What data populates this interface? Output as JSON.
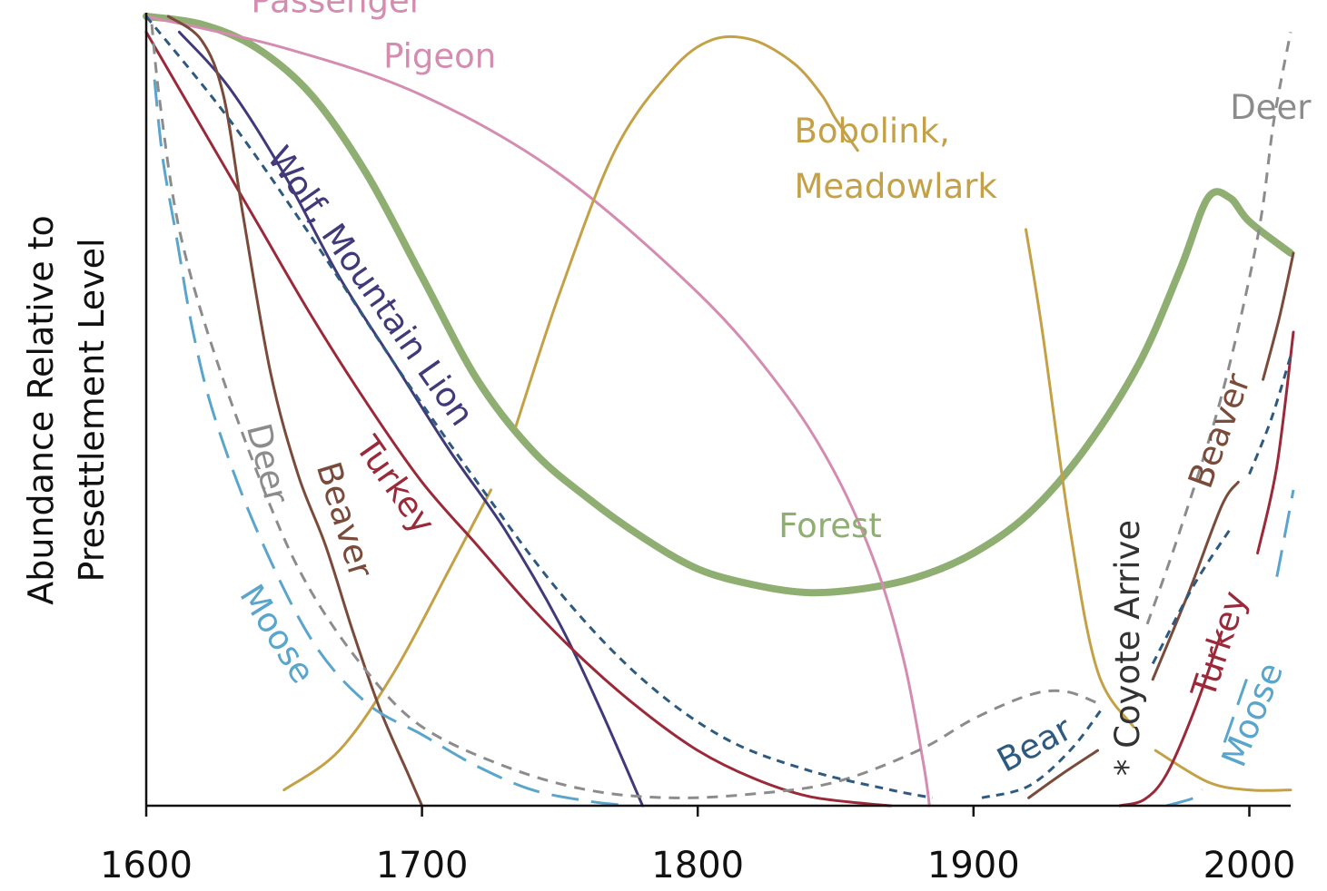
{
  "chart_data": {
    "type": "line",
    "title": "",
    "xlabel": "",
    "ylabel_lines": [
      "Abundance Relative to",
      "Presettlement Level"
    ],
    "xlim": [
      1600,
      2015
    ],
    "ylim": [
      0,
      1
    ],
    "x_ticks": [
      1600,
      1700,
      1800,
      1900,
      2000
    ],
    "x_tick_labels": [
      "1600",
      "1700",
      "1800",
      "1900",
      "2000"
    ],
    "grid": false,
    "legend": "none (direct labels)",
    "colors": {
      "forest": "#8fae72",
      "pigeon": "#d48cb0",
      "bobolink": "#c4a146",
      "wolf": "#413a7a",
      "turkey": "#9a2a3a",
      "beaver": "#7a4b3a",
      "deer": "#8c8c8c",
      "moose": "#5aa5cc",
      "bear": "#2f5a80",
      "coyote": "#333333"
    },
    "series": [
      {
        "key": "forest",
        "name": "Forest",
        "color": "#8fae72",
        "style": "solid",
        "width": 8,
        "segments": [
          [
            [
              1600,
              1.0
            ],
            [
              1620,
              0.99
            ],
            [
              1640,
              0.96
            ],
            [
              1660,
              0.9
            ],
            [
              1680,
              0.8
            ],
            [
              1700,
              0.67
            ],
            [
              1720,
              0.54
            ],
            [
              1740,
              0.45
            ],
            [
              1760,
              0.39
            ],
            [
              1780,
              0.34
            ],
            [
              1800,
              0.3
            ],
            [
              1820,
              0.28
            ],
            [
              1840,
              0.27
            ],
            [
              1860,
              0.275
            ],
            [
              1880,
              0.29
            ],
            [
              1900,
              0.32
            ],
            [
              1920,
              0.37
            ],
            [
              1940,
              0.45
            ],
            [
              1960,
              0.56
            ],
            [
              1975,
              0.68
            ],
            [
              1985,
              0.77
            ],
            [
              1993,
              0.77
            ],
            [
              2000,
              0.74
            ],
            [
              2015,
              0.7
            ]
          ]
        ]
      },
      {
        "key": "pigeon",
        "name": "Passenger Pigeon",
        "color": "#d48cb0",
        "style": "solid",
        "width": 3,
        "segments": [
          [
            [
              1600,
              1.0
            ],
            [
              1650,
              0.96
            ],
            [
              1700,
              0.9
            ],
            [
              1750,
              0.8
            ],
            [
              1800,
              0.65
            ],
            [
              1830,
              0.53
            ],
            [
              1850,
              0.42
            ],
            [
              1865,
              0.3
            ],
            [
              1875,
              0.18
            ],
            [
              1882,
              0.05
            ],
            [
              1884,
              0.0
            ]
          ]
        ]
      },
      {
        "key": "bobolink",
        "name": "Bobolink, Meadowlark",
        "color": "#c4a146",
        "style": "solid",
        "width": 3,
        "segments": [
          [
            [
              1650,
              0.02
            ],
            [
              1670,
              0.07
            ],
            [
              1690,
              0.17
            ],
            [
              1710,
              0.3
            ],
            [
              1725,
              0.4
            ]
          ],
          [
            [
              1734,
              0.48
            ],
            [
              1750,
              0.65
            ],
            [
              1770,
              0.83
            ],
            [
              1790,
              0.93
            ],
            [
              1805,
              0.97
            ],
            [
              1820,
              0.97
            ],
            [
              1835,
              0.94
            ],
            [
              1845,
              0.9
            ],
            [
              1850,
              0.87
            ],
            [
              1858,
              0.83
            ]
          ],
          [
            [
              1919,
              0.73
            ],
            [
              1925,
              0.6
            ],
            [
              1935,
              0.35
            ],
            [
              1945,
              0.17
            ],
            [
              1958,
              0.1
            ]
          ],
          [
            [
              1966,
              0.07
            ],
            [
              1985,
              0.03
            ],
            [
              2000,
              0.02
            ],
            [
              2015,
              0.02
            ]
          ]
        ]
      },
      {
        "key": "wolf",
        "name": "Wolf, Mountain Lion",
        "color": "#413a7a",
        "style": "solid",
        "width": 3,
        "segments": [
          [
            [
              1612,
              0.98
            ],
            [
              1630,
              0.91
            ],
            [
              1650,
              0.8
            ],
            [
              1670,
              0.67
            ],
            [
              1690,
              0.56
            ],
            [
              1710,
              0.45
            ],
            [
              1730,
              0.35
            ],
            [
              1750,
              0.23
            ],
            [
              1765,
              0.12
            ],
            [
              1780,
              0.0
            ]
          ]
        ]
      },
      {
        "key": "turkey",
        "name": "Turkey",
        "color": "#9a2a3a",
        "style": "solid",
        "width": 3,
        "segments": [
          [
            [
              1600,
              0.98
            ],
            [
              1620,
              0.86
            ],
            [
              1640,
              0.74
            ],
            [
              1660,
              0.62
            ],
            [
              1680,
              0.51
            ],
            [
              1700,
              0.41
            ],
            [
              1720,
              0.33
            ],
            [
              1740,
              0.25
            ],
            [
              1760,
              0.18
            ],
            [
              1780,
              0.12
            ],
            [
              1800,
              0.07
            ],
            [
              1820,
              0.035
            ],
            [
              1840,
              0.012
            ],
            [
              1860,
              0.003
            ],
            [
              1870,
              0.0
            ]
          ],
          [
            [
              1953,
              0.0
            ],
            [
              1962,
              0.008
            ],
            [
              1970,
              0.04
            ],
            [
              1980,
              0.12
            ],
            [
              1990,
              0.22
            ]
          ],
          [
            [
              2003,
              0.32
            ],
            [
              2010,
              0.43
            ],
            [
              2016,
              0.6
            ]
          ]
        ]
      },
      {
        "key": "beaver",
        "name": "Beaver",
        "color": "#7a4b3a",
        "style": "solid",
        "width": 3,
        "segments": [
          [
            [
              1608,
              1.0
            ],
            [
              1620,
              0.97
            ],
            [
              1628,
              0.9
            ],
            [
              1635,
              0.75
            ],
            [
              1645,
              0.55
            ],
            [
              1655,
              0.42
            ],
            [
              1665,
              0.33
            ],
            [
              1675,
              0.22
            ],
            [
              1685,
              0.12
            ],
            [
              1695,
              0.04
            ],
            [
              1700,
              0.0
            ]
          ],
          [
            [
              1920,
              0.01
            ],
            [
              1932,
              0.04
            ],
            [
              1945,
              0.07
            ]
          ],
          [
            [
              1965,
              0.16
            ],
            [
              1978,
              0.27
            ],
            [
              1990,
              0.38
            ],
            [
              1996,
              0.41
            ]
          ],
          [
            [
              2005,
              0.54
            ],
            [
              2011,
              0.62
            ],
            [
              2016,
              0.7
            ]
          ]
        ]
      },
      {
        "key": "deer",
        "name": "Deer",
        "color": "#8c8c8c",
        "style": "dash",
        "width": 3,
        "segments": [
          [
            [
              1602,
              0.99
            ],
            [
              1605,
              0.89
            ],
            [
              1612,
              0.73
            ],
            [
              1625,
              0.57
            ],
            [
              1645,
              0.38
            ],
            [
              1660,
              0.27
            ],
            [
              1680,
              0.17
            ],
            [
              1700,
              0.1
            ],
            [
              1730,
              0.05
            ],
            [
              1760,
              0.02
            ],
            [
              1790,
              0.01
            ],
            [
              1820,
              0.015
            ],
            [
              1850,
              0.03
            ],
            [
              1880,
              0.07
            ],
            [
              1900,
              0.11
            ],
            [
              1920,
              0.14
            ],
            [
              1933,
              0.145
            ],
            [
              1945,
              0.13
            ]
          ],
          [
            [
              1963,
              0.23
            ],
            [
              1975,
              0.35
            ],
            [
              1990,
              0.52
            ],
            [
              2003,
              0.72
            ],
            [
              2009,
              0.87
            ],
            [
              2015,
              0.98
            ]
          ]
        ]
      },
      {
        "key": "moose",
        "name": "Moose",
        "color": "#5aa5cc",
        "style": "longdash",
        "width": 3,
        "segments": [
          [
            [
              1603,
              0.92
            ],
            [
              1606,
              0.82
            ],
            [
              1611,
              0.72
            ],
            [
              1617,
              0.6
            ],
            [
              1625,
              0.49
            ],
            [
              1640,
              0.35
            ],
            [
              1660,
              0.21
            ],
            [
              1680,
              0.13
            ],
            [
              1700,
              0.09
            ],
            [
              1720,
              0.05
            ],
            [
              1740,
              0.02
            ],
            [
              1760,
              0.006
            ],
            [
              1775,
              0.0
            ]
          ],
          [
            [
              1970,
              0.0
            ],
            [
              1980,
              0.01
            ],
            [
              1983,
              0.02
            ]
          ],
          [
            [
              1991,
              0.08
            ],
            [
              2000,
              0.17
            ]
          ],
          [
            [
              2010,
              0.29
            ],
            [
              2016,
              0.4
            ]
          ]
        ]
      },
      {
        "key": "bear",
        "name": "Bear",
        "color": "#2f5a80",
        "style": "shortdash",
        "width": 3,
        "segments": [
          [
            [
              1600,
              1.0
            ],
            [
              1630,
              0.87
            ],
            [
              1660,
              0.72
            ],
            [
              1690,
              0.56
            ],
            [
              1720,
              0.41
            ],
            [
              1750,
              0.27
            ],
            [
              1780,
              0.16
            ],
            [
              1810,
              0.085
            ],
            [
              1840,
              0.045
            ],
            [
              1870,
              0.02
            ],
            [
              1885,
              0.01
            ]
          ],
          [
            [
              1903,
              0.01
            ],
            [
              1920,
              0.025
            ],
            [
              1935,
              0.07
            ],
            [
              1946,
              0.12
            ]
          ],
          [
            [
              1965,
              0.18
            ],
            [
              1980,
              0.28
            ],
            [
              1993,
              0.35
            ]
          ],
          [
            [
              2000,
              0.42
            ],
            [
              2008,
              0.49
            ],
            [
              2015,
              0.57
            ]
          ]
        ]
      }
    ],
    "annotations": [
      {
        "key": "pigeon",
        "text": "Passenger",
        "x": 1638,
        "y": 1.005,
        "rotate": 0,
        "color": "#d48cb0",
        "anchor": "start"
      },
      {
        "key": "pigeon2",
        "text": "Pigeon",
        "x": 1686,
        "y": 0.935,
        "rotate": 0,
        "color": "#d48cb0",
        "anchor": "start"
      },
      {
        "key": "bobolink",
        "text": "Bobolink,",
        "x": 1835,
        "y": 0.84,
        "rotate": 0,
        "color": "#c4a146",
        "anchor": "start"
      },
      {
        "key": "meadowlark",
        "text": "Meadowlark",
        "x": 1835,
        "y": 0.77,
        "rotate": 0,
        "color": "#c4a146",
        "anchor": "start"
      },
      {
        "key": "deer_top",
        "text": "Deer",
        "x": 1993,
        "y": 0.87,
        "rotate": 0,
        "color": "#8c8c8c",
        "anchor": "start"
      },
      {
        "key": "wolf",
        "text": "Wolf, Mountain Lion",
        "x": 1678,
        "y": 0.65,
        "rotate": 55,
        "color": "#413a7a",
        "anchor": "middle"
      },
      {
        "key": "turkey_left",
        "text": "Turkey",
        "x": 1687,
        "y": 0.398,
        "rotate": 55,
        "color": "#9a2a3a",
        "anchor": "middle"
      },
      {
        "key": "beaver_left",
        "text": "Beaver",
        "x": 1668,
        "y": 0.358,
        "rotate": 73,
        "color": "#7a4b3a",
        "anchor": "middle"
      },
      {
        "key": "deer_left",
        "text": "Deer",
        "x": 1640,
        "y": 0.43,
        "rotate": 76,
        "color": "#8c8c8c",
        "anchor": "middle"
      },
      {
        "key": "moose_left",
        "text": "Moose",
        "x": 1644,
        "y": 0.21,
        "rotate": 58,
        "color": "#5aa5cc",
        "anchor": "middle"
      },
      {
        "key": "forest",
        "text": "Forest",
        "x": 1848,
        "y": 0.34,
        "rotate": 0,
        "color": "#8fae72",
        "anchor": "middle"
      },
      {
        "key": "bear",
        "text": "Bear",
        "x": 1924,
        "y": 0.065,
        "rotate": -28,
        "color": "#2f5a80",
        "anchor": "middle"
      },
      {
        "key": "coyote",
        "text": "* Coyote Arrive",
        "x": 1960,
        "y": 0.2,
        "rotate": -90,
        "color": "#333333",
        "anchor": "middle"
      },
      {
        "key": "beaver_right",
        "text": "Beaver",
        "x": 1993,
        "y": 0.47,
        "rotate": -70,
        "color": "#7a4b3a",
        "anchor": "middle"
      },
      {
        "key": "turkey_right",
        "text": "Turkey",
        "x": 1993,
        "y": 0.2,
        "rotate": -72,
        "color": "#9a2a3a",
        "anchor": "middle"
      },
      {
        "key": "moose_right",
        "text": "Moose",
        "x": 2005,
        "y": 0.11,
        "rotate": -68,
        "color": "#5aa5cc",
        "anchor": "middle"
      }
    ]
  }
}
